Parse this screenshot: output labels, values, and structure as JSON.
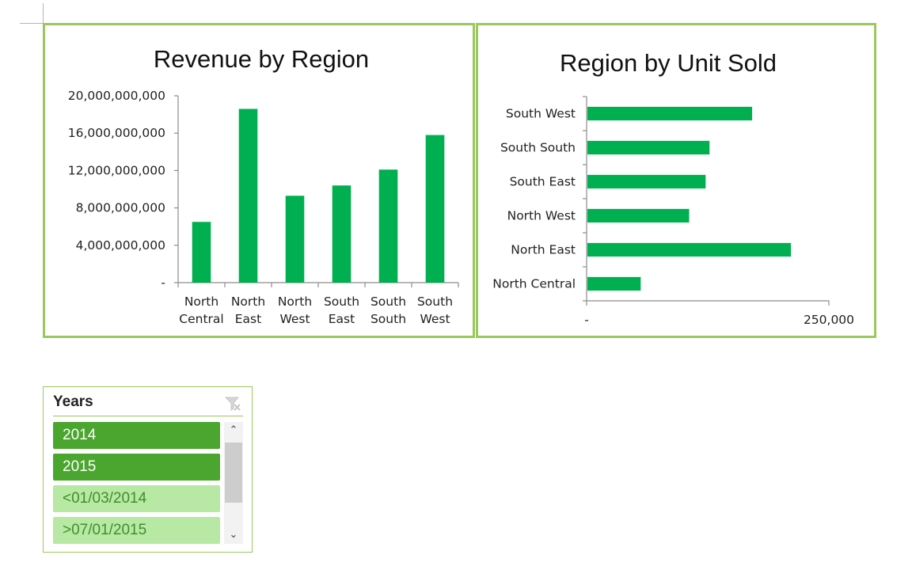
{
  "colors": {
    "bar": "#00b050",
    "frame": "#9bc85c",
    "slicer_selected": "#4aa62e",
    "slicer_nodata": "#b7e8a4"
  },
  "chart_data": [
    {
      "type": "bar",
      "title": "Revenue by Region",
      "categories": [
        [
          "North",
          "Central"
        ],
        [
          "North",
          "East"
        ],
        [
          "North",
          "West"
        ],
        [
          "South",
          "East"
        ],
        [
          "South",
          "South"
        ],
        [
          "South",
          "West"
        ]
      ],
      "values": [
        6500000000,
        18600000000,
        9300000000,
        10400000000,
        12100000000,
        15800000000
      ],
      "ylim": [
        0,
        20000000000
      ],
      "yticks": [
        0,
        4000000000,
        8000000000,
        12000000000,
        16000000000,
        20000000000
      ],
      "ytick_labels": [
        "-",
        "4,000,000,000",
        "8,000,000,000",
        "12,000,000,000",
        "16,000,000,000",
        "20,000,000,000"
      ],
      "grid": false,
      "xlabel": "",
      "ylabel": ""
    },
    {
      "type": "bar",
      "orientation": "horizontal",
      "title": "Region by Unit Sold",
      "categories": [
        "South West",
        "South South",
        "South East",
        "North West",
        "North East",
        "North Central"
      ],
      "values": [
        170000,
        126000,
        122000,
        105000,
        210000,
        55000
      ],
      "xlim": [
        0,
        250000
      ],
      "xticks": [
        0,
        250000
      ],
      "xtick_labels": [
        "-",
        "250,000"
      ],
      "grid": false,
      "xlabel": "",
      "ylabel": ""
    }
  ],
  "slicer": {
    "title": "Years",
    "clear_icon": "clear-filter-icon",
    "items": [
      {
        "label": "2014",
        "state": "selected"
      },
      {
        "label": "2015",
        "state": "selected"
      },
      {
        "label": "<01/03/2014",
        "state": "nodata"
      },
      {
        "label": ">07/01/2015",
        "state": "nodata"
      }
    ],
    "scroll_up_icon": "chevron-up-icon",
    "scroll_down_icon": "chevron-down-icon"
  }
}
